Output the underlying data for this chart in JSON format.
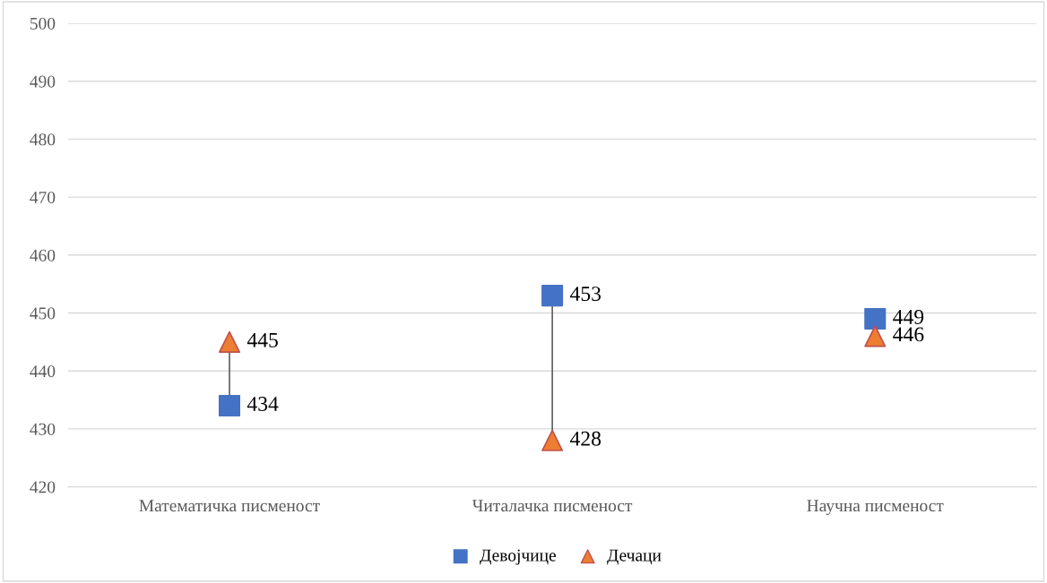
{
  "chart_data": {
    "type": "scatter",
    "categories": [
      "Математичка писменост",
      "Читалачка писменост",
      "Научна писменост"
    ],
    "series": [
      {
        "name": "Девојчице",
        "marker": "square",
        "color": "#4472c4",
        "values": [
          434,
          453,
          449
        ],
        "value_labels": [
          "434",
          "453",
          "449"
        ]
      },
      {
        "name": "Дечаци",
        "marker": "triangle",
        "color": "#ed7d31",
        "values": [
          445,
          428,
          446
        ],
        "value_labels": [
          "445",
          "428",
          "446"
        ]
      }
    ],
    "ylim": [
      420,
      500
    ],
    "yticks": [
      420,
      430,
      440,
      450,
      460,
      470,
      480,
      490,
      500
    ],
    "grid": "y",
    "legend": "bottom"
  }
}
